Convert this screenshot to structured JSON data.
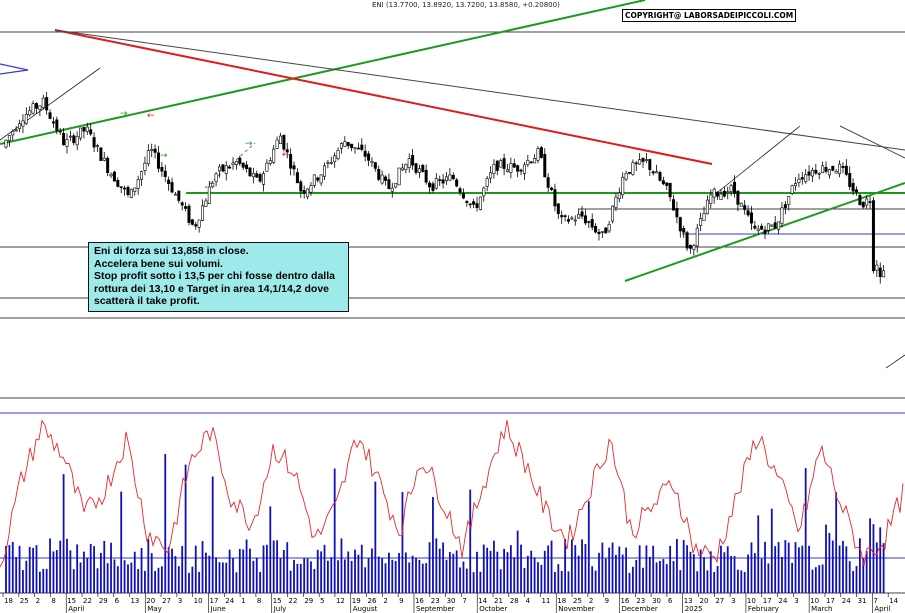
{
  "header": {
    "ticker_line": "ENI (13.7700, 13.8920, 13.7200, 13.8580, +0.20800)",
    "copyright": "COPYRIGHT@ LABORSADEIPICCOLI.COM"
  },
  "note": {
    "lines": [
      "Eni di forza sui 13,858 in close.",
      "Accelera bene sui volumi.",
      "Stop profit sotto i 13,5 per chi fosse dentro dalla",
      "rottura dei 13,10 e Target in area 14,1/14,2 dove",
      "scatterà il take profit."
    ]
  },
  "colors": {
    "candle": "#000000",
    "oscillator": "#e8282b",
    "volume": "#1010b8",
    "trend_green": "#1d9a1d",
    "trend_red": "#e01b1b",
    "grid": "#000000",
    "blue_ref": "#3a3acd",
    "note_bg": "#9eeaea"
  },
  "chart_data": {
    "type": "candlestick",
    "symbol": "ENI",
    "last_bar": {
      "open": 13.77,
      "high": 13.892,
      "low": 13.72,
      "close": 13.858,
      "change": 0.208
    },
    "annotated_levels": [
      13.858,
      13.5,
      13.1,
      14.1,
      14.2
    ],
    "x_day_labels": [
      "18",
      "25",
      "2",
      "8",
      "15",
      "22",
      "29",
      "6",
      "13",
      "20",
      "27",
      "3",
      "10",
      "17",
      "24",
      "1",
      "8",
      "15",
      "22",
      "29",
      "5",
      "12",
      "19",
      "26",
      "2",
      "9",
      "16",
      "23",
      "30",
      "7",
      "14",
      "21",
      "28",
      "4",
      "11",
      "18",
      "25",
      "2",
      "9",
      "16",
      "23",
      "30",
      "6",
      "13",
      "20",
      "27",
      "3",
      "10",
      "17",
      "24",
      "3",
      "10",
      "17",
      "24",
      "31",
      "7",
      "14"
    ],
    "x_month_labels": [
      {
        "label": "April",
        "at": 4
      },
      {
        "label": "May",
        "at": 9
      },
      {
        "label": "June",
        "at": 13
      },
      {
        "label": "July",
        "at": 17
      },
      {
        "label": "August",
        "at": 22
      },
      {
        "label": "September",
        "at": 26
      },
      {
        "label": "October",
        "at": 30
      },
      {
        "label": "November",
        "at": 35
      },
      {
        "label": "December",
        "at": 39
      },
      {
        "label": "2025",
        "at": 43
      },
      {
        "label": "February",
        "at": 47
      },
      {
        "label": "March",
        "at": 51
      },
      {
        "label": "April",
        "at": 55
      }
    ],
    "price_path": [
      15.2,
      15.75,
      16.0,
      15.3,
      15.55,
      14.9,
      14.4,
      15.2,
      14.55,
      13.9,
      14.8,
      15.0,
      14.65,
      15.45,
      14.5,
      14.85,
      15.35,
      15.1,
      14.55,
      15.05,
      14.6,
      14.75,
      14.2,
      14.95,
      14.9,
      15.15,
      14.0,
      14.1,
      13.75,
      14.85,
      15.0,
      14.5,
      13.5,
      14.45,
      14.55,
      13.85,
      13.95,
      14.75,
      14.9,
      14.9,
      14.3,
      14.55,
      13.8
    ],
    "oscillator_path": [
      10,
      60,
      92,
      75,
      40,
      55,
      85,
      30,
      20,
      70,
      90,
      50,
      35,
      80,
      65,
      25,
      45,
      88,
      60,
      30,
      75,
      50,
      20,
      60,
      92,
      70,
      40,
      25,
      55,
      85,
      30,
      45,
      60,
      20,
      15,
      50,
      88,
      60,
      30,
      80,
      45,
      15,
      25,
      55
    ]
  }
}
